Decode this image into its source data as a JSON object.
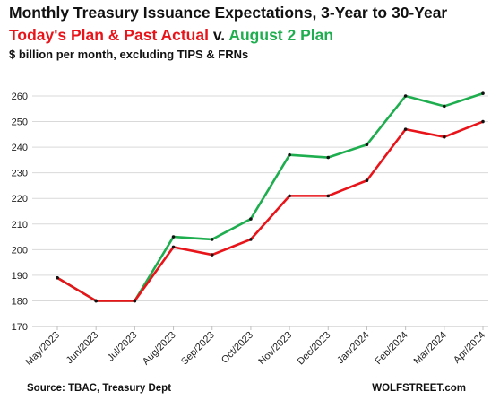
{
  "chart_data": {
    "type": "line",
    "title": "Monthly Treasury Issuance Expectations, 3-Year to 30-Year",
    "subtitle_parts": {
      "red": "Today's Plan & Past Actual",
      "mid": " v. ",
      "green": "August 2 Plan"
    },
    "units": "$ billion per month, excluding TIPS & FRNs",
    "categories": [
      "May/2023",
      "Jun/2023",
      "Jul/2023",
      "Aug/2023",
      "Sep/2023",
      "Oct/2023",
      "Nov/2023",
      "Dec/2023",
      "Jan/2024",
      "Feb/2024",
      "Mar/2024",
      "Apr/2024"
    ],
    "series": [
      {
        "name": "August 2 Plan",
        "color": "#1fae4f",
        "values": [
          189,
          180,
          180,
          205,
          204,
          212,
          237,
          236,
          241,
          260,
          256,
          261
        ]
      },
      {
        "name": "Today's Plan & Past Actual",
        "color": "#e8141a",
        "values": [
          189,
          180,
          180,
          201,
          198,
          204,
          221,
          221,
          227,
          247,
          244,
          250
        ]
      }
    ],
    "ylim": [
      170,
      260
    ],
    "yticks": [
      170,
      180,
      190,
      200,
      210,
      220,
      230,
      240,
      250,
      260
    ],
    "grid": true,
    "source": "Source: TBAC, Treasury Dept",
    "brand": "WOLFSTREET.com"
  }
}
